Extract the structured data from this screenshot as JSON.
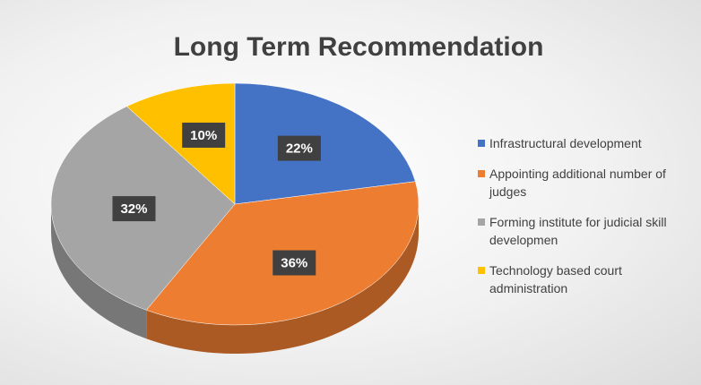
{
  "chart_data": {
    "type": "pie",
    "title": "Long Term Recommendation",
    "categories": [
      "Infrastructural development",
      "Appointing additional number of judges",
      "Forming institute for judicial skill developmen",
      "Technology based court administration"
    ],
    "values": [
      22,
      36,
      32,
      10
    ],
    "value_labels": [
      "22%",
      "36%",
      "32%",
      "10%"
    ],
    "colors": [
      "#4472c4",
      "#ed7d31",
      "#a5a5a5",
      "#ffc000"
    ],
    "legend": "right"
  }
}
